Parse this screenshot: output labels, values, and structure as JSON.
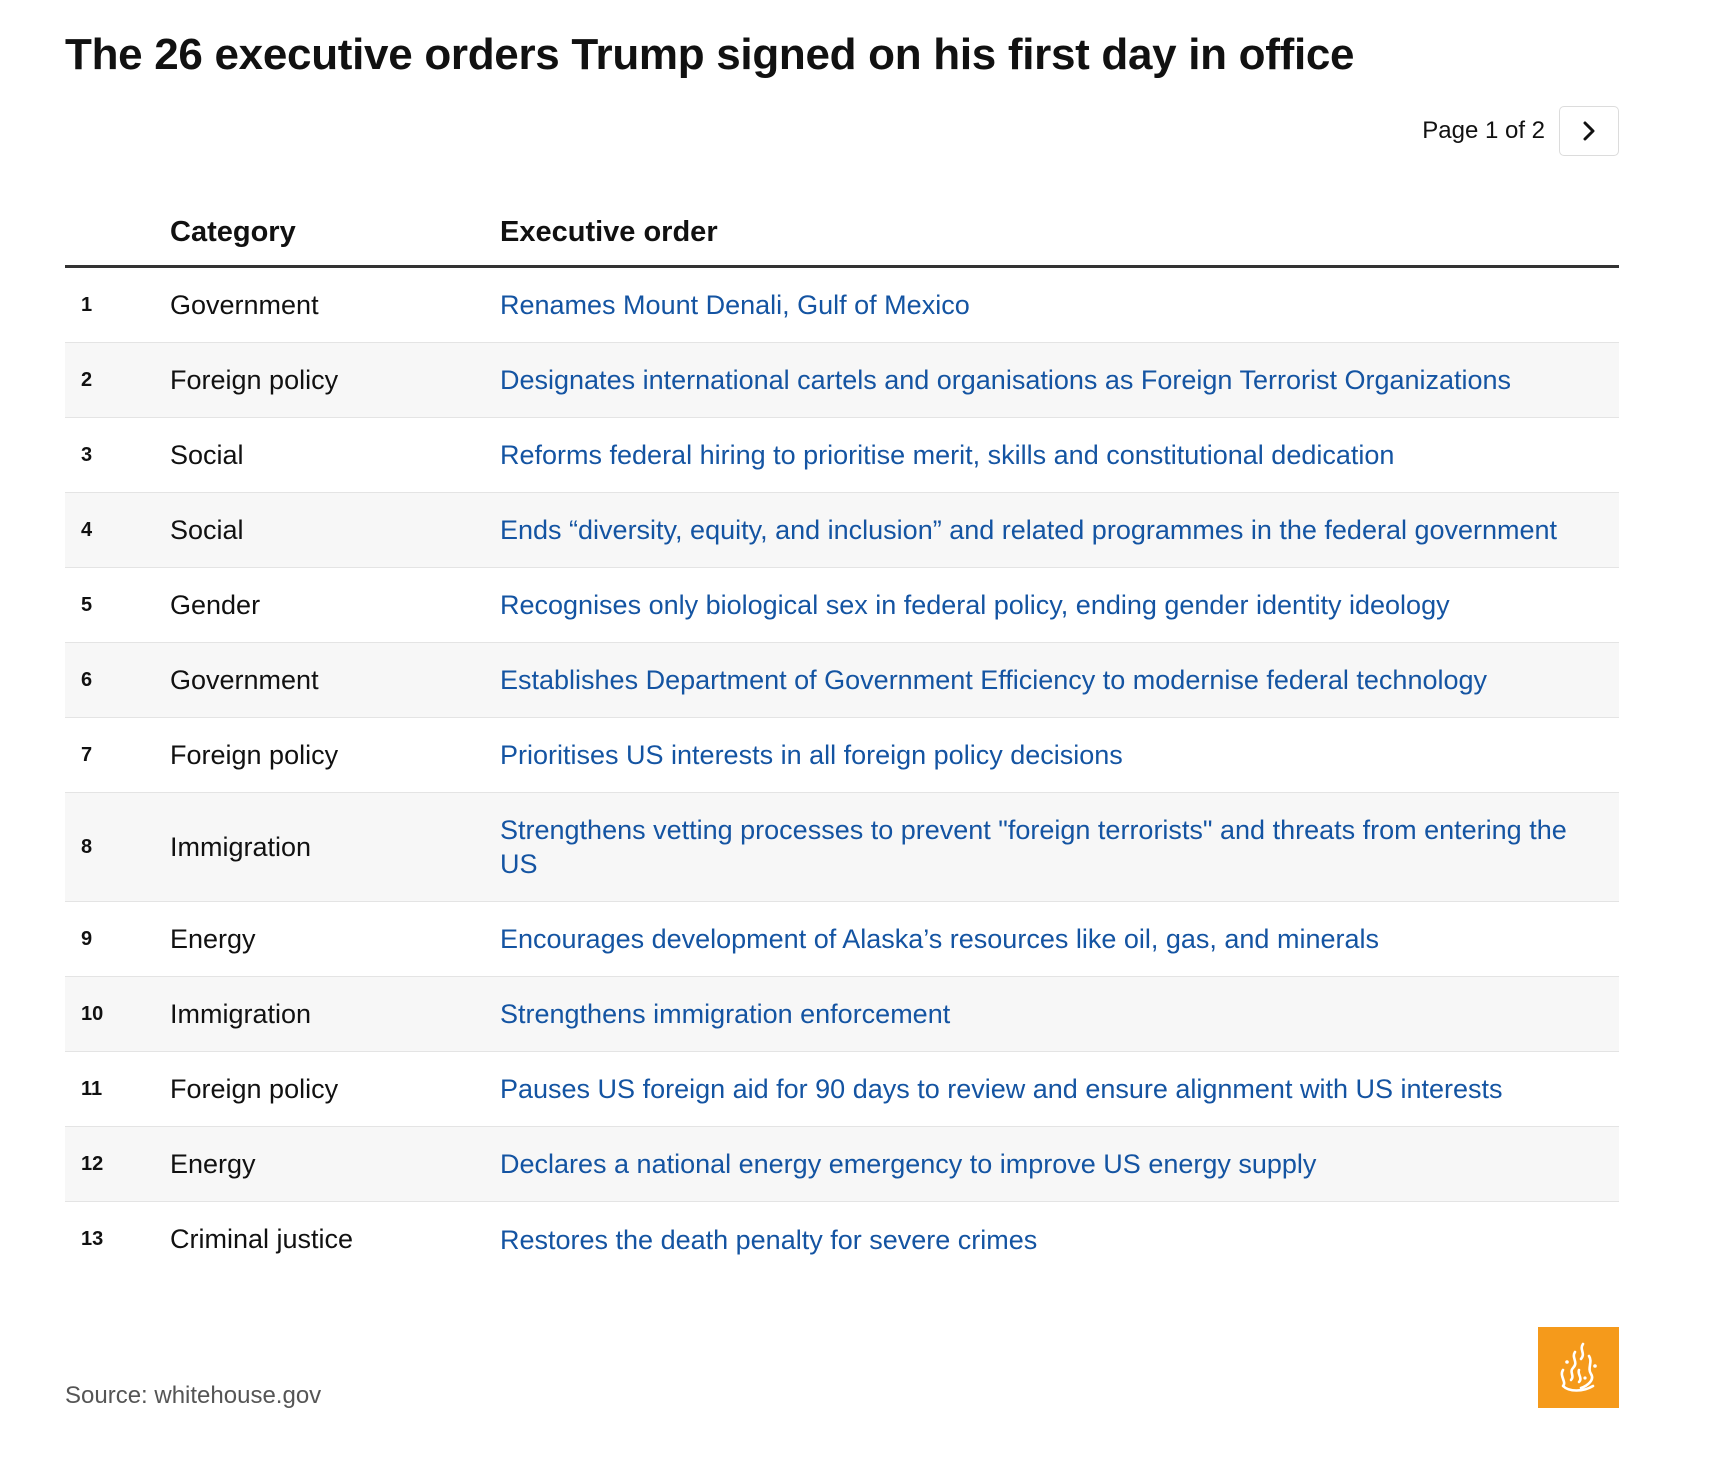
{
  "title": "The 26 executive orders Trump signed on his first day in office",
  "pager": {
    "label": "Page 1 of 2",
    "next_icon": "chevron-right-icon"
  },
  "table": {
    "headers": {
      "number": "",
      "category": "Category",
      "order": "Executive order"
    },
    "rows": [
      {
        "num": "1",
        "category": "Government",
        "order": "Renames Mount Denali, Gulf of Mexico"
      },
      {
        "num": "2",
        "category": "Foreign policy",
        "order": "Designates international cartels and organisations as Foreign Terrorist Organizations"
      },
      {
        "num": "3",
        "category": "Social",
        "order": "Reforms federal hiring to prioritise merit, skills and constitutional dedication"
      },
      {
        "num": "4",
        "category": "Social",
        "order": "Ends “diversity, equity, and inclusion” and related programmes in the federal government"
      },
      {
        "num": "5",
        "category": "Gender",
        "order": "Recognises only biological sex in federal policy, ending gender identity ideology"
      },
      {
        "num": "6",
        "category": "Government",
        "order": "Establishes Department of Government Efficiency to modernise federal technology"
      },
      {
        "num": "7",
        "category": "Foreign policy",
        "order": "Prioritises US interests in all foreign policy decisions"
      },
      {
        "num": "8",
        "category": "Immigration",
        "order": "Strengthens vetting processes to prevent \"foreign terrorists\" and threats from entering the US"
      },
      {
        "num": "9",
        "category": "Energy",
        "order": "Encourages development of Alaska’s resources like oil, gas, and minerals"
      },
      {
        "num": "10",
        "category": "Immigration",
        "order": "Strengthens immigration enforcement"
      },
      {
        "num": "11",
        "category": "Foreign policy",
        "order": "Pauses US foreign aid for 90 days to review and ensure alignment with US interests"
      },
      {
        "num": "12",
        "category": "Energy",
        "order": "Declares a national energy emergency to improve US energy supply"
      },
      {
        "num": "13",
        "category": "Criminal justice",
        "order": "Restores the death penalty for severe crimes"
      }
    ]
  },
  "source": "Source: whitehouse.gov",
  "logo": {
    "icon": "al-jazeera-logo-icon",
    "color": "#f59a1b"
  },
  "colors": {
    "link": "#1454a2",
    "row_shade": "#f7f7f7",
    "header_rule": "#333333"
  }
}
